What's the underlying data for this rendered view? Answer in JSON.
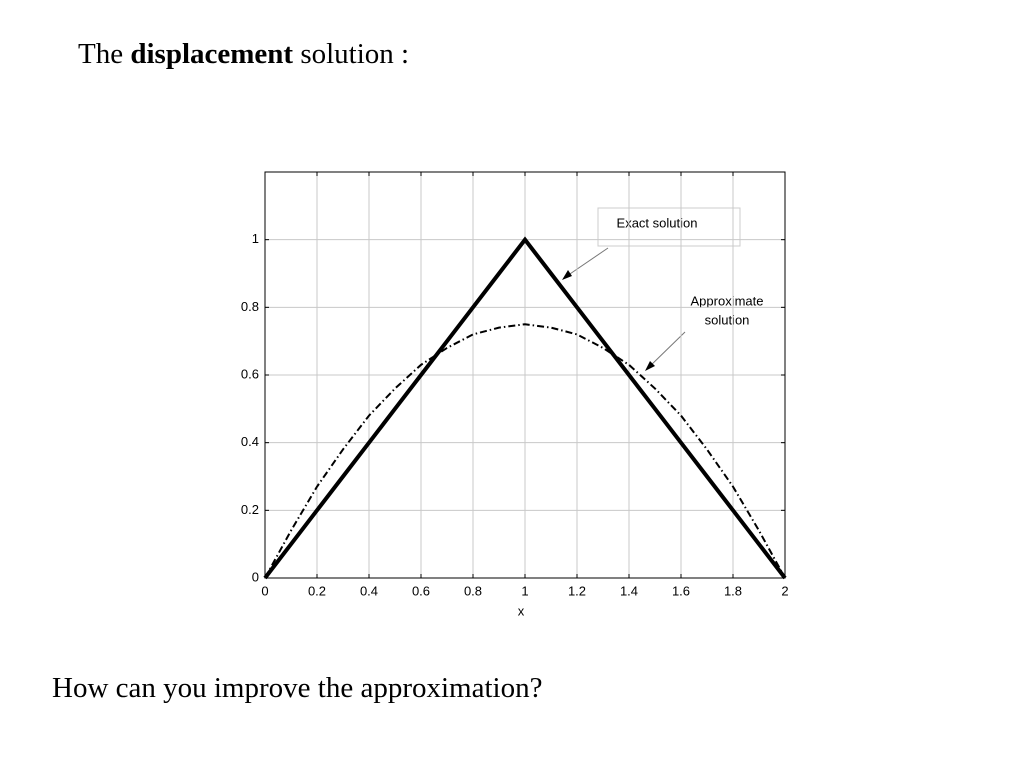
{
  "heading": {
    "before": "The",
    "bold": "displacement",
    "after": "solution :"
  },
  "question": "How can you improve the approximation?",
  "chart_data": {
    "type": "line",
    "x_label": "x",
    "x": [
      0,
      0.1,
      0.2,
      0.3,
      0.4,
      0.5,
      0.6,
      0.7,
      0.8,
      0.9,
      1,
      1.1,
      1.2,
      1.3,
      1.4,
      1.5,
      1.6,
      1.7,
      1.8,
      1.9,
      2
    ],
    "series": [
      {
        "name": "Exact solution",
        "color": "#000000",
        "line_style": "solid",
        "line_width": 4,
        "values": [
          0,
          0.1,
          0.2,
          0.3,
          0.4,
          0.5,
          0.6,
          0.7,
          0.8,
          0.9,
          1,
          0.9,
          0.8,
          0.7,
          0.6,
          0.5,
          0.4,
          0.3,
          0.2,
          0.1,
          0
        ]
      },
      {
        "name": [
          "Approximate",
          "solution"
        ],
        "color": "#000000",
        "line_style": "dashdot",
        "line_width": 2,
        "values": [
          0,
          0.14,
          0.27,
          0.38,
          0.48,
          0.56,
          0.63,
          0.68,
          0.72,
          0.74,
          0.75,
          0.74,
          0.72,
          0.68,
          0.63,
          0.56,
          0.48,
          0.38,
          0.27,
          0.14,
          0
        ]
      }
    ],
    "xlim": [
      0,
      2
    ],
    "xticks": [
      0,
      0.2,
      0.4,
      0.6,
      0.8,
      1,
      1.2,
      1.4,
      1.6,
      1.8,
      2
    ],
    "ylim": [
      0,
      1.2
    ],
    "yticks": [
      0,
      0.2,
      0.4,
      0.6,
      0.8,
      1
    ],
    "grid": true
  }
}
